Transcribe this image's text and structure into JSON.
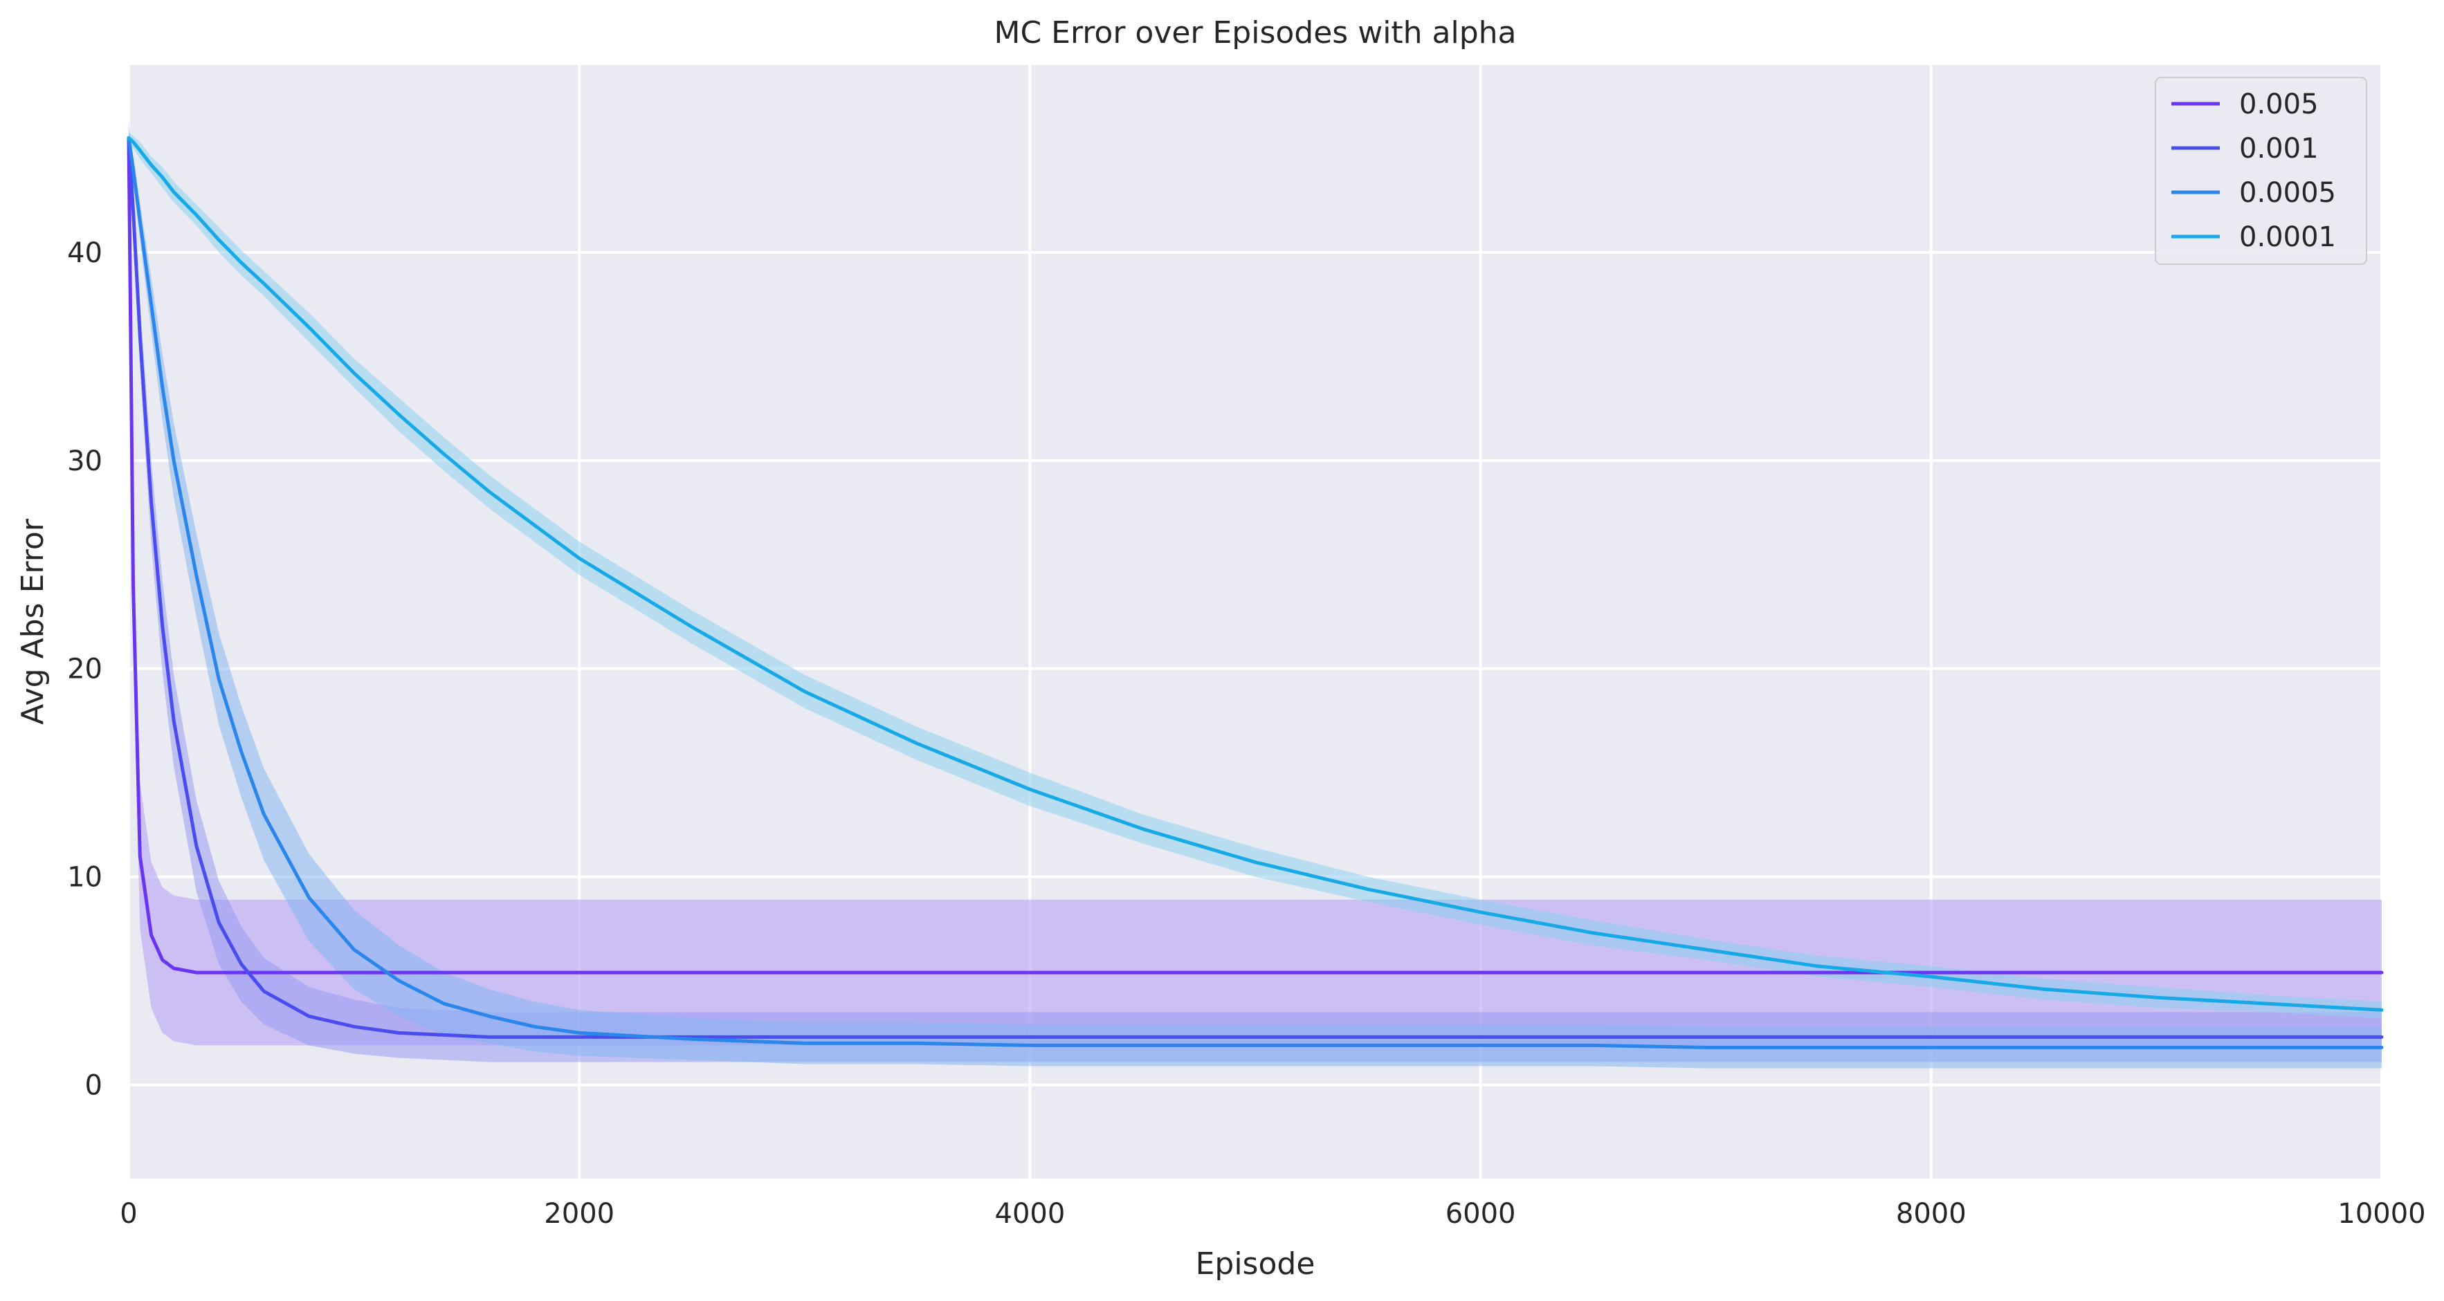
{
  "chart_data": {
    "type": "line",
    "title": "MC Error over Episodes with alpha",
    "xlabel": "Episode",
    "ylabel": "Avg Abs Error",
    "xlim": [
      0,
      10000
    ],
    "ylim": [
      -4.5,
      49
    ],
    "xticks": [
      0,
      2000,
      4000,
      6000,
      8000,
      10000
    ],
    "yticks": [
      0,
      10,
      20,
      30,
      40
    ],
    "grid": true,
    "legend_position": "top-right",
    "x": [
      0,
      20,
      50,
      100,
      150,
      200,
      300,
      400,
      500,
      600,
      800,
      1000,
      1200,
      1400,
      1600,
      1800,
      2000,
      2500,
      3000,
      3500,
      4000,
      4500,
      5000,
      5500,
      6000,
      6500,
      7000,
      7500,
      8000,
      8500,
      9000,
      9500,
      10000
    ],
    "series": [
      {
        "name": "0.005",
        "color": "#6a35f0",
        "band_color": "#b09af5",
        "values": [
          45.5,
          24,
          11,
          7.2,
          6.0,
          5.6,
          5.4,
          5.4,
          5.4,
          5.4,
          5.4,
          5.4,
          5.4,
          5.4,
          5.4,
          5.4,
          5.4,
          5.4,
          5.4,
          5.4,
          5.4,
          5.4,
          5.4,
          5.4,
          5.4,
          5.4,
          5.4,
          5.4,
          5.4,
          5.4,
          5.4,
          5.4,
          5.4
        ],
        "band_halfwidth": [
          1,
          3,
          3.5,
          3.5,
          3.5,
          3.5,
          3.5,
          3.5,
          3.5,
          3.5,
          3.5,
          3.5,
          3.5,
          3.5,
          3.5,
          3.5,
          3.5,
          3.5,
          3.5,
          3.5,
          3.5,
          3.5,
          3.5,
          3.5,
          3.5,
          3.5,
          3.5,
          3.5,
          3.5,
          3.5,
          3.5,
          3.5,
          3.5
        ]
      },
      {
        "name": "0.001",
        "color": "#4a4cee",
        "band_color": "#9a9cf2",
        "values": [
          45.5,
          42,
          36,
          28,
          22,
          17.5,
          11.5,
          7.8,
          5.8,
          4.5,
          3.3,
          2.8,
          2.5,
          2.4,
          2.3,
          2.3,
          2.3,
          2.3,
          2.3,
          2.3,
          2.3,
          2.3,
          2.3,
          2.3,
          2.3,
          2.3,
          2.3,
          2.3,
          2.3,
          2.3,
          2.3,
          2.3,
          2.3
        ],
        "band_halfwidth": [
          0.8,
          1.2,
          1.6,
          2.0,
          2.2,
          2.2,
          2.2,
          2.0,
          1.8,
          1.6,
          1.4,
          1.3,
          1.2,
          1.2,
          1.2,
          1.2,
          1.2,
          1.2,
          1.2,
          1.2,
          1.2,
          1.2,
          1.2,
          1.2,
          1.2,
          1.2,
          1.2,
          1.2,
          1.2,
          1.2,
          1.2,
          1.2,
          1.2
        ]
      },
      {
        "name": "0.0005",
        "color": "#2a86ea",
        "band_color": "#86b6f0",
        "values": [
          45.5,
          44,
          41.5,
          37.5,
          33.5,
          30,
          24.5,
          19.5,
          16,
          13,
          9,
          6.5,
          5.0,
          3.9,
          3.3,
          2.8,
          2.5,
          2.2,
          2.0,
          2.0,
          1.9,
          1.9,
          1.9,
          1.9,
          1.9,
          1.9,
          1.8,
          1.8,
          1.8,
          1.8,
          1.8,
          1.8,
          1.8
        ],
        "band_halfwidth": [
          0.4,
          0.6,
          0.9,
          1.3,
          1.6,
          1.8,
          2.0,
          2.2,
          2.2,
          2.2,
          2.1,
          1.9,
          1.7,
          1.5,
          1.3,
          1.2,
          1.1,
          1.0,
          1.0,
          1.0,
          1.0,
          1.0,
          1.0,
          1.0,
          1.0,
          1.0,
          1.0,
          1.0,
          1.0,
          1.0,
          1.0,
          1.0,
          1.0
        ]
      },
      {
        "name": "0.0001",
        "color": "#16a9e6",
        "band_color": "#8ecfee",
        "values": [
          45.5,
          45.3,
          44.9,
          44.2,
          43.6,
          42.9,
          41.8,
          40.6,
          39.5,
          38.5,
          36.4,
          34.2,
          32.2,
          30.3,
          28.5,
          26.9,
          25.3,
          22.0,
          18.9,
          16.4,
          14.2,
          12.3,
          10.7,
          9.4,
          8.3,
          7.3,
          6.5,
          5.7,
          5.2,
          4.6,
          4.2,
          3.9,
          3.6
        ],
        "band_halfwidth": [
          0.3,
          0.3,
          0.4,
          0.4,
          0.5,
          0.5,
          0.5,
          0.6,
          0.6,
          0.6,
          0.7,
          0.7,
          0.8,
          0.8,
          0.8,
          0.8,
          0.8,
          0.8,
          0.8,
          0.8,
          0.8,
          0.7,
          0.7,
          0.6,
          0.6,
          0.6,
          0.5,
          0.5,
          0.5,
          0.5,
          0.5,
          0.4,
          0.4
        ]
      }
    ]
  }
}
